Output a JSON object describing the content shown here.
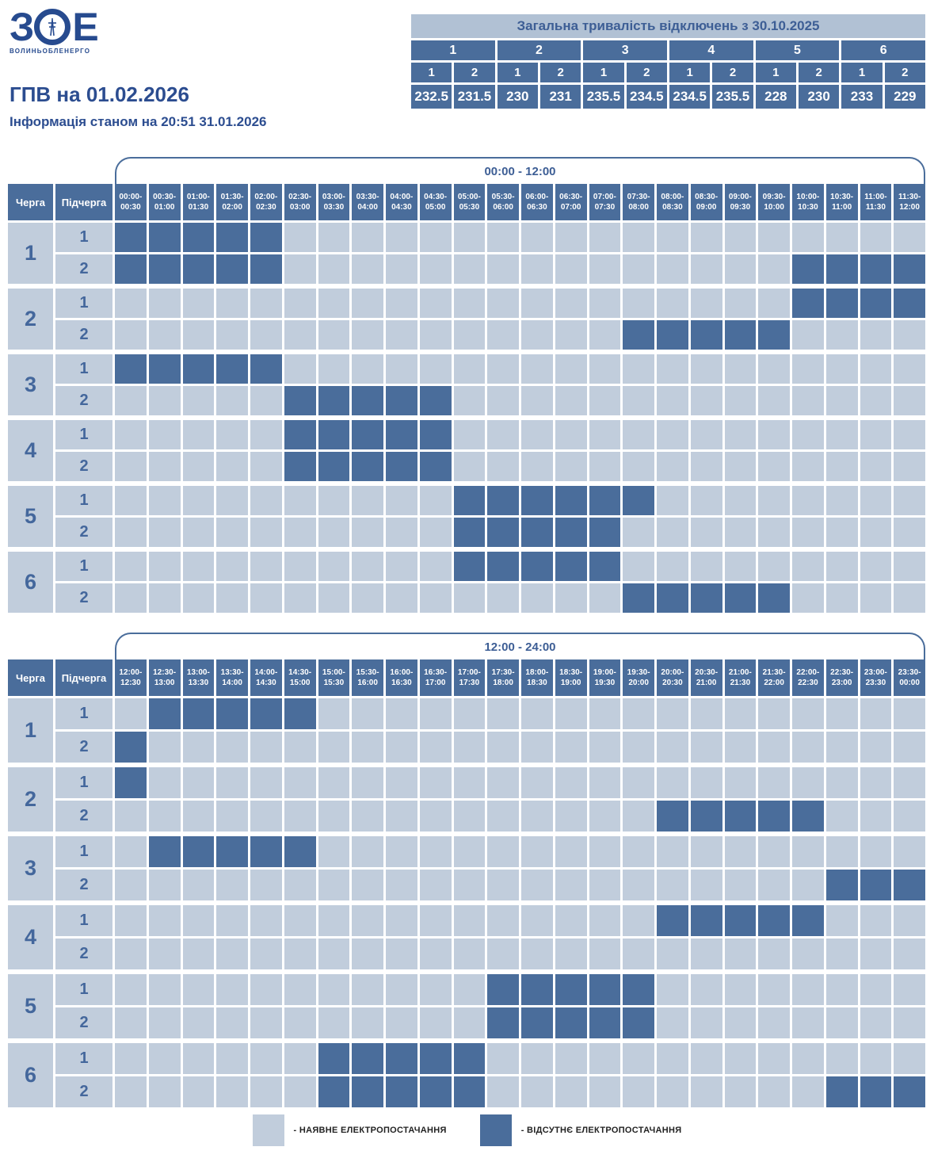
{
  "logo": {
    "letter_left": "З",
    "letter_right": "Е",
    "icon": "transmission-tower-icon",
    "caption": "ВОЛИНЬОБЛЕНЕРГО"
  },
  "heading": {
    "title": "ГПВ на 01.02.2026",
    "subtitle": "Інформація станом на 20:51 31.01.2026"
  },
  "summary_table": {
    "title": "Загальна тривалість відключень з 30.10.2025",
    "groups": [
      "1",
      "2",
      "3",
      "4",
      "5",
      "6"
    ],
    "subgroups": [
      "1",
      "2",
      "1",
      "2",
      "1",
      "2",
      "1",
      "2",
      "1",
      "2",
      "1",
      "2"
    ],
    "values": [
      "232.5",
      "231.5",
      "230",
      "231",
      "235.5",
      "234.5",
      "234.5",
      "235.5",
      "228",
      "230",
      "233",
      "229"
    ]
  },
  "labels": {
    "queue": "Черга",
    "subqueue": "Підчерга"
  },
  "colors": {
    "outage": "#4a6d9b",
    "available": "#c1cddc",
    "accent_text": "#2c4d90",
    "table_title_bg": "#b1c1d4"
  },
  "legend": [
    {
      "state": "available",
      "label": "- НАЯВНЕ ЕЛЕКТРОПОСТАЧАННЯ"
    },
    {
      "state": "outage",
      "label": "- ВІДСУТНЄ ЕЛЕКТРОПОСТАЧАННЯ"
    }
  ],
  "chart_data": {
    "type": "heatmap",
    "legend_position": "bottom",
    "value_encoding": {
      "off": "відсутнє електропостачання (dark cell)",
      "on": "наявне електропостачання (light cell)"
    },
    "grids": [
      {
        "period": "00:00 - 12:00",
        "columns": [
          "00:00-00:30",
          "00:30-01:00",
          "01:00-01:30",
          "01:30-02:00",
          "02:00-02:30",
          "02:30-03:00",
          "03:00-03:30",
          "03:30-04:00",
          "04:00-04:30",
          "04:30-05:00",
          "05:00-05:30",
          "05:30-06:00",
          "06:00-06:30",
          "06:30-07:00",
          "07:00-07:30",
          "07:30-08:00",
          "08:00-08:30",
          "08:30-09:00",
          "09:00-09:30",
          "09:30-10:00",
          "10:00-10:30",
          "10:30-11:00",
          "11:00-11:30",
          "11:30-12:00"
        ],
        "rows": [
          {
            "queue": "1",
            "sub": "1",
            "off_slots": [
              0,
              1,
              2,
              3,
              4
            ]
          },
          {
            "queue": "1",
            "sub": "2",
            "off_slots": [
              0,
              1,
              2,
              3,
              4,
              20,
              21,
              22,
              23
            ]
          },
          {
            "queue": "2",
            "sub": "1",
            "off_slots": [
              20,
              21,
              22,
              23
            ]
          },
          {
            "queue": "2",
            "sub": "2",
            "off_slots": [
              15,
              16,
              17,
              18,
              19
            ]
          },
          {
            "queue": "3",
            "sub": "1",
            "off_slots": [
              0,
              1,
              2,
              3,
              4
            ]
          },
          {
            "queue": "3",
            "sub": "2",
            "off_slots": [
              5,
              6,
              7,
              8,
              9
            ]
          },
          {
            "queue": "4",
            "sub": "1",
            "off_slots": [
              5,
              6,
              7,
              8,
              9
            ]
          },
          {
            "queue": "4",
            "sub": "2",
            "off_slots": [
              5,
              6,
              7,
              8,
              9
            ]
          },
          {
            "queue": "5",
            "sub": "1",
            "off_slots": [
              10,
              11,
              12,
              13,
              14,
              15
            ]
          },
          {
            "queue": "5",
            "sub": "2",
            "off_slots": [
              10,
              11,
              12,
              13,
              14
            ]
          },
          {
            "queue": "6",
            "sub": "1",
            "off_slots": [
              10,
              11,
              12,
              13,
              14
            ]
          },
          {
            "queue": "6",
            "sub": "2",
            "off_slots": [
              15,
              16,
              17,
              18,
              19
            ]
          }
        ]
      },
      {
        "period": "12:00 - 24:00",
        "columns": [
          "12:00-12:30",
          "12:30-13:00",
          "13:00-13:30",
          "13:30-14:00",
          "14:00-14:30",
          "14:30-15:00",
          "15:00-15:30",
          "15:30-16:00",
          "16:00-16:30",
          "16:30-17:00",
          "17:00-17:30",
          "17:30-18:00",
          "18:00-18:30",
          "18:30-19:00",
          "19:00-19:30",
          "19:30-20:00",
          "20:00-20:30",
          "20:30-21:00",
          "21:00-21:30",
          "21:30-22:00",
          "22:00-22:30",
          "22:30-23:00",
          "23:00-23:30",
          "23:30-00:00"
        ],
        "rows": [
          {
            "queue": "1",
            "sub": "1",
            "off_slots": [
              1,
              2,
              3,
              4,
              5
            ]
          },
          {
            "queue": "1",
            "sub": "2",
            "off_slots": [
              0
            ]
          },
          {
            "queue": "2",
            "sub": "1",
            "off_slots": [
              0
            ]
          },
          {
            "queue": "2",
            "sub": "2",
            "off_slots": [
              16,
              17,
              18,
              19,
              20
            ]
          },
          {
            "queue": "3",
            "sub": "1",
            "off_slots": [
              1,
              2,
              3,
              4,
              5
            ]
          },
          {
            "queue": "3",
            "sub": "2",
            "off_slots": [
              21,
              22,
              23
            ]
          },
          {
            "queue": "4",
            "sub": "1",
            "off_slots": [
              16,
              17,
              18,
              19,
              20
            ]
          },
          {
            "queue": "4",
            "sub": "2",
            "off_slots": []
          },
          {
            "queue": "5",
            "sub": "1",
            "off_slots": [
              11,
              12,
              13,
              14,
              15
            ]
          },
          {
            "queue": "5",
            "sub": "2",
            "off_slots": [
              11,
              12,
              13,
              14,
              15
            ]
          },
          {
            "queue": "6",
            "sub": "1",
            "off_slots": [
              6,
              7,
              8,
              9,
              10
            ]
          },
          {
            "queue": "6",
            "sub": "2",
            "off_slots": [
              6,
              7,
              8,
              9,
              10,
              21,
              22,
              23
            ]
          }
        ]
      }
    ]
  }
}
